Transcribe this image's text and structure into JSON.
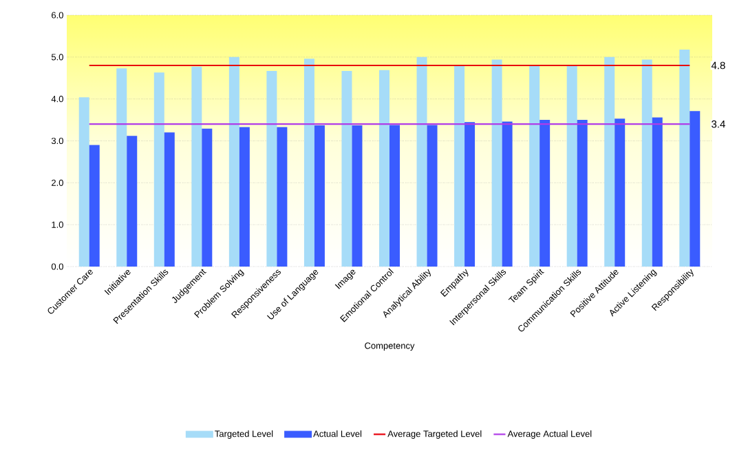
{
  "chart_data": {
    "type": "bar",
    "xlabel": "Competency",
    "categories": [
      "Customer Care",
      "Initiative",
      "Presentation Skills",
      "Judgement",
      "Problem Solving",
      "Responsiveness",
      "Use of Language",
      "Image",
      "Emotional Control",
      "Analytical Ability",
      "Empathy",
      "Interpersonal Skills",
      "Team Spirit",
      "Communication Skills",
      "Positive Attitude",
      "Active Listening",
      "Responsibility"
    ],
    "series": [
      {
        "name": "Targeted Level",
        "color": "#a6dcf8",
        "values": [
          4.04,
          4.73,
          4.63,
          4.77,
          5.0,
          4.67,
          4.96,
          4.67,
          4.69,
          5.0,
          4.8,
          4.94,
          4.8,
          4.8,
          5.0,
          4.94,
          5.18
        ]
      },
      {
        "name": "Actual Level",
        "color": "#3a5cff",
        "values": [
          2.9,
          3.12,
          3.2,
          3.29,
          3.33,
          3.33,
          3.37,
          3.37,
          3.38,
          3.38,
          3.45,
          3.46,
          3.5,
          3.5,
          3.53,
          3.56,
          3.71
        ]
      },
      {
        "name": "Average Targeted Level",
        "type": "line",
        "color": "#e8000b",
        "values": [
          4.8,
          4.8,
          4.8,
          4.8,
          4.8,
          4.8,
          4.8,
          4.8,
          4.8,
          4.8,
          4.8,
          4.8,
          4.8,
          4.8,
          4.8,
          4.8,
          4.8
        ]
      },
      {
        "name": "Average Actual Level",
        "type": "line",
        "color": "#b03ce8",
        "values": [
          3.4,
          3.4,
          3.4,
          3.4,
          3.4,
          3.4,
          3.4,
          3.4,
          3.4,
          3.4,
          3.4,
          3.4,
          3.4,
          3.4,
          3.4,
          3.4,
          3.4
        ]
      }
    ],
    "ylim": [
      0,
      6
    ],
    "yticks": [
      {
        "value": 0,
        "label": "0.0"
      },
      {
        "value": 1,
        "label": "1.0"
      },
      {
        "value": 2,
        "label": "2.0"
      },
      {
        "value": 3,
        "label": "3.0"
      },
      {
        "value": 4,
        "label": "4.0"
      },
      {
        "value": 5,
        "label": "5.0"
      },
      {
        "value": 6,
        "label": "6.0"
      }
    ],
    "annotations": [
      {
        "text": "4.8",
        "x": "Responsibility",
        "y": 4.8
      },
      {
        "text": "3.4",
        "x": "Responsibility",
        "y": 3.4
      }
    ],
    "grid": "y",
    "legend": "bottom",
    "marker": "none",
    "line_style": "solid"
  }
}
